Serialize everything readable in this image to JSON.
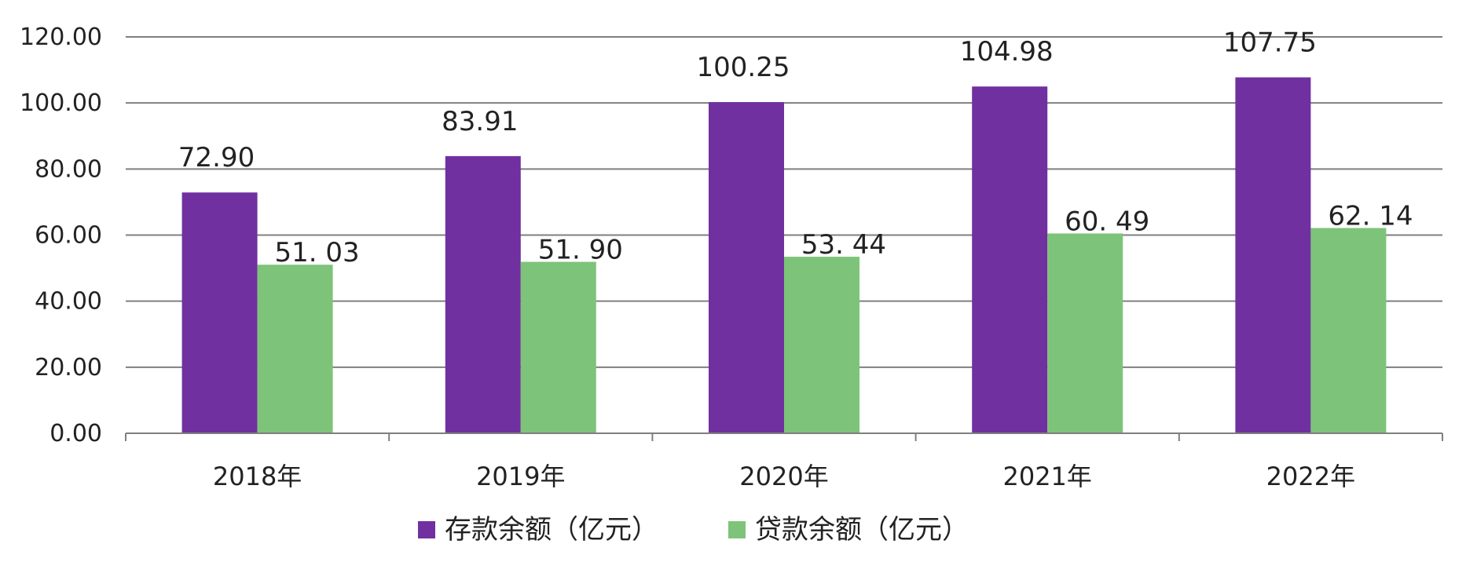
{
  "chart_data": {
    "type": "bar",
    "title": "",
    "xlabel": "",
    "ylabel": "",
    "categories": [
      "2018年",
      "2019年",
      "2020年",
      "2021年",
      "2022年"
    ],
    "series": [
      {
        "name": "存款余额（亿元）",
        "color": "#7030a0",
        "values": [
          72.9,
          83.91,
          100.25,
          104.98,
          107.75
        ],
        "labels": [
          "72.90",
          "83.91",
          "100.25",
          "104.98",
          "107.75"
        ]
      },
      {
        "name": "贷款余额（亿元）",
        "color": "#7dc47a",
        "values": [
          51.03,
          51.9,
          53.44,
          60.49,
          62.14
        ],
        "labels": [
          "51. 03",
          "51. 90",
          "53. 44",
          "60. 49",
          "62. 14"
        ]
      }
    ],
    "ylim": [
      0,
      120
    ],
    "yticks": [
      "0.00",
      "20.00",
      "40.00",
      "60.00",
      "80.00",
      "100.00",
      "120.00"
    ],
    "ytick_values": [
      0,
      20,
      40,
      60,
      80,
      100,
      120
    ],
    "grid": true,
    "legend_position": "bottom"
  }
}
